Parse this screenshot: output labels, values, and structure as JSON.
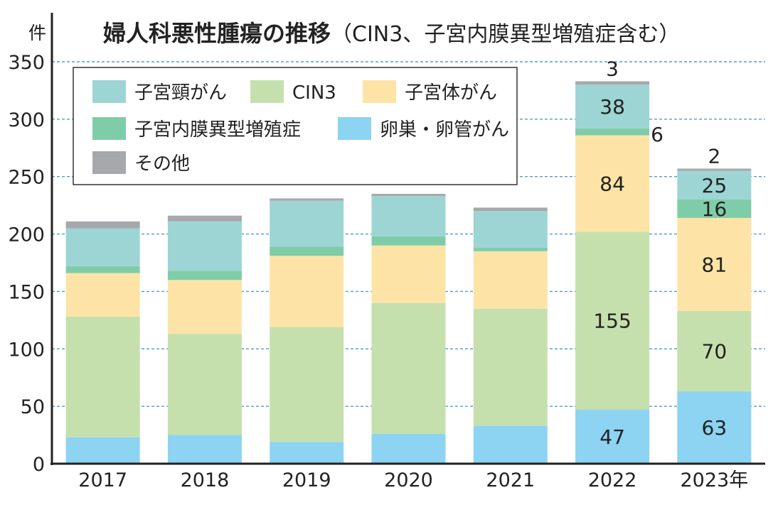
{
  "chart_data": {
    "type": "bar",
    "stacked": true,
    "title": "婦人科悪性腫瘍の推移",
    "subtitle": "（CIN3、子宮内膜異型増殖症含む）",
    "ylabel": "件",
    "ylim": [
      0,
      350
    ],
    "yticks": [
      0,
      50,
      100,
      150,
      200,
      250,
      300,
      350
    ],
    "categories": [
      "2017",
      "2018",
      "2019",
      "2020",
      "2021",
      "2022",
      "2023"
    ],
    "year_suffix": "年",
    "legend_position": "top-left",
    "series": [
      {
        "name": "卵巣・卵管がん",
        "color": "#8dd3f2",
        "values": [
          23,
          25,
          19,
          26,
          33,
          47,
          63
        ]
      },
      {
        "name": "CIN3",
        "color": "#c5e0ad",
        "values": [
          105,
          88,
          100,
          114,
          102,
          155,
          70
        ]
      },
      {
        "name": "子宮体がん",
        "color": "#fde4a6",
        "values": [
          38,
          47,
          62,
          50,
          50,
          84,
          81
        ]
      },
      {
        "name": "子宮内膜異型増殖症",
        "color": "#7fcca9",
        "values": [
          6,
          8,
          8,
          8,
          3,
          6,
          16
        ]
      },
      {
        "name": "子宮頸がん",
        "color": "#9cd5d4",
        "values": [
          33,
          43,
          40,
          35,
          32,
          38,
          25
        ]
      },
      {
        "name": "その他",
        "color": "#a7a8ab",
        "values": [
          6,
          5,
          2,
          2,
          3,
          3,
          2
        ]
      }
    ],
    "legend_order": [
      "子宮頸がん",
      "CIN3",
      "子宮体がん",
      "子宮内膜異型増殖症",
      "卵巣・卵管がん",
      "その他"
    ]
  }
}
